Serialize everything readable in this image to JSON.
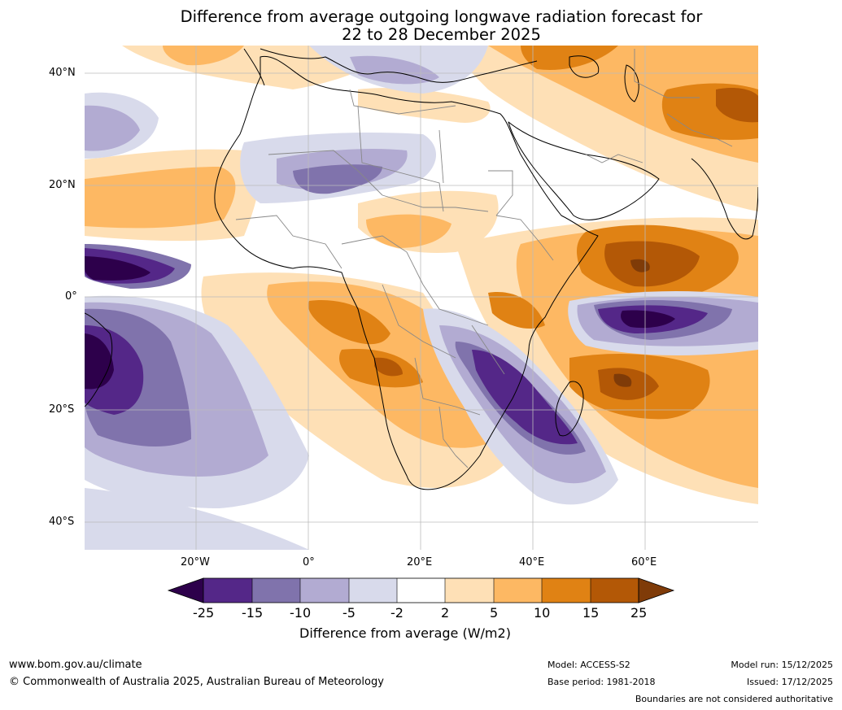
{
  "title": {
    "line1": "Difference from average outgoing longwave radiation forecast for",
    "line2": "22 to 28 December 2025"
  },
  "axes": {
    "lat_labels": [
      "40°N",
      "20°N",
      "0°",
      "20°S",
      "40°S"
    ],
    "lon_labels": [
      "20°W",
      "0°",
      "20°E",
      "40°E",
      "60°E"
    ]
  },
  "colorbar": {
    "ticks": [
      "-25",
      "-15",
      "-10",
      "-5",
      "-2",
      "2",
      "5",
      "10",
      "15",
      "25"
    ],
    "label": "Difference from average (W/m2)",
    "colors": {
      "under": "#2d004b",
      "bins": [
        "#542788",
        "#8073ac",
        "#b2abd2",
        "#d8daeb",
        "#ffffff",
        "#fee0b6",
        "#fdb863",
        "#e08214",
        "#b35806"
      ],
      "over": "#7f3b08"
    }
  },
  "footer": {
    "website": "www.bom.gov.au/climate",
    "copyright": "© Commonwealth of Australia 2025, Australian Bureau of Meteorology",
    "model": "Model: ACCESS-S2",
    "base_period": "Base period: 1981-2018",
    "model_run": "Model run: 15/12/2025",
    "issued": "Issued: 17/12/2025",
    "disclaimer": "Boundaries are not considered authoritative"
  }
}
